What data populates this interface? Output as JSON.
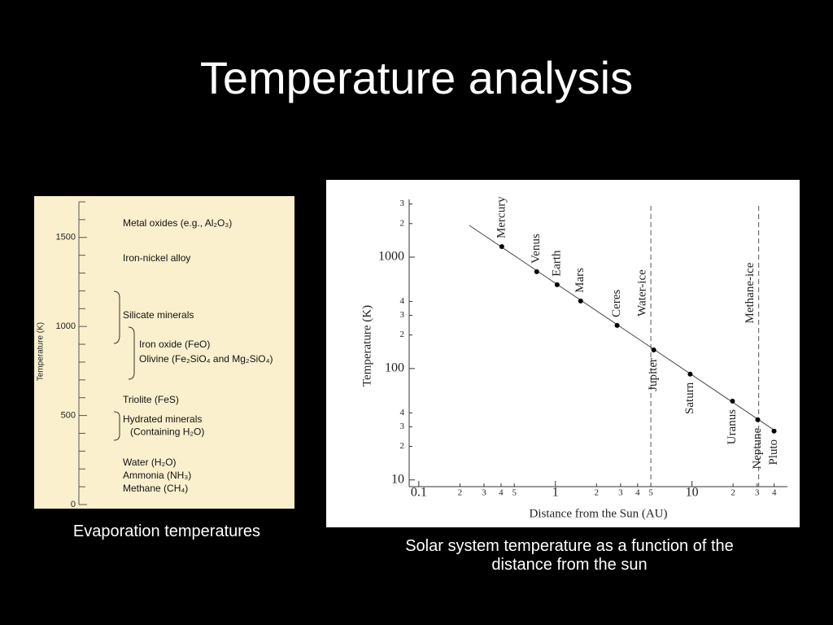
{
  "title": "Temperature analysis",
  "chart_data": [
    {
      "type": "scale",
      "ylabel": "Temperature (K)",
      "ylim": [
        0,
        1700
      ],
      "yticks": [
        0,
        500,
        1000,
        1500
      ],
      "minor_yticks": [
        100,
        200,
        300,
        400,
        600,
        700,
        800,
        900,
        1100,
        1200,
        1300,
        1400,
        1600,
        1700
      ],
      "labels": [
        {
          "text": "Metal oxides (e.g., Al₂O₃)",
          "value": 1577
        },
        {
          "text": "Iron-nickel alloy",
          "value": 1381
        },
        {
          "text": "Silicate minerals",
          "value": 1061
        },
        {
          "text": "Iron oxide (FeO)",
          "value": 896
        },
        {
          "text": "Olivine (Fe₂SiO₄ and Mg₂SiO₄)",
          "value": 814
        },
        {
          "text": "Triolite (FeS)",
          "value": 585
        },
        {
          "text": "Hydrated minerals",
          "value": 475
        },
        {
          "text": "(Containing H₂O)",
          "value": 406
        },
        {
          "text": "Water (H₂O)",
          "value": 233
        },
        {
          "text": "Ammonia (NH₃)",
          "value": 160
        },
        {
          "text": "Methane (CH₄)",
          "value": 87
        }
      ],
      "caption": "Evaporation temperatures"
    },
    {
      "type": "scatter",
      "xlabel": "Distance from the Sun (AU)",
      "ylabel": "Temperature (K)",
      "xlog": true,
      "ylog": true,
      "xlim": [
        0.085,
        50
      ],
      "ylim": [
        8.7,
        3300
      ],
      "xticks": [
        {
          "value": 0.1,
          "label": "0.1"
        },
        {
          "value": 0.2,
          "label": "2"
        },
        {
          "value": 0.3,
          "label": "3"
        },
        {
          "value": 0.4,
          "label": "4"
        },
        {
          "value": 0.5,
          "label": "5"
        },
        1,
        {
          "value": 2,
          "label": "2"
        },
        {
          "value": 3,
          "label": "3"
        },
        {
          "value": 4,
          "label": "4"
        },
        {
          "value": 5,
          "label": "5"
        },
        10,
        {
          "value": 20,
          "label": "2"
        },
        {
          "value": 30,
          "label": "3"
        },
        {
          "value": 40,
          "label": "4"
        }
      ],
      "yticks": [
        10,
        {
          "value": 20,
          "label": "2"
        },
        {
          "value": 30,
          "label": "3"
        },
        {
          "value": 40,
          "label": "4"
        },
        100,
        {
          "value": 200,
          "label": "2"
        },
        {
          "value": 300,
          "label": "3"
        },
        {
          "value": 400,
          "label": "4"
        },
        1000,
        {
          "value": 2000,
          "label": "2"
        },
        {
          "value": 3000,
          "label": "3"
        }
      ],
      "color": "#000000",
      "labels": [
        "Mercury",
        "Venus",
        "Earth",
        "Mars",
        "Ceres",
        "Jupiter",
        "Saturn",
        "Uranus",
        "Neptune",
        "Pluto"
      ],
      "x": [
        0.405,
        0.73,
        1.03,
        1.53,
        2.83,
        5.25,
        9.7,
        19.8,
        30.3,
        39.9
      ],
      "values": [
        1245,
        740,
        565,
        404,
        244,
        147,
        89,
        51,
        34.7,
        27.4
      ],
      "line": {
        "x": [
          0.234,
          41
        ],
        "values": [
          1930,
          27.4
        ]
      },
      "annotations": [
        {
          "text": "Water-ice",
          "x": 5
        },
        {
          "text": "Methane-ice",
          "x": 30.8
        }
      ],
      "caption": "Solar system temperature as a function of the distance from the sun"
    }
  ]
}
